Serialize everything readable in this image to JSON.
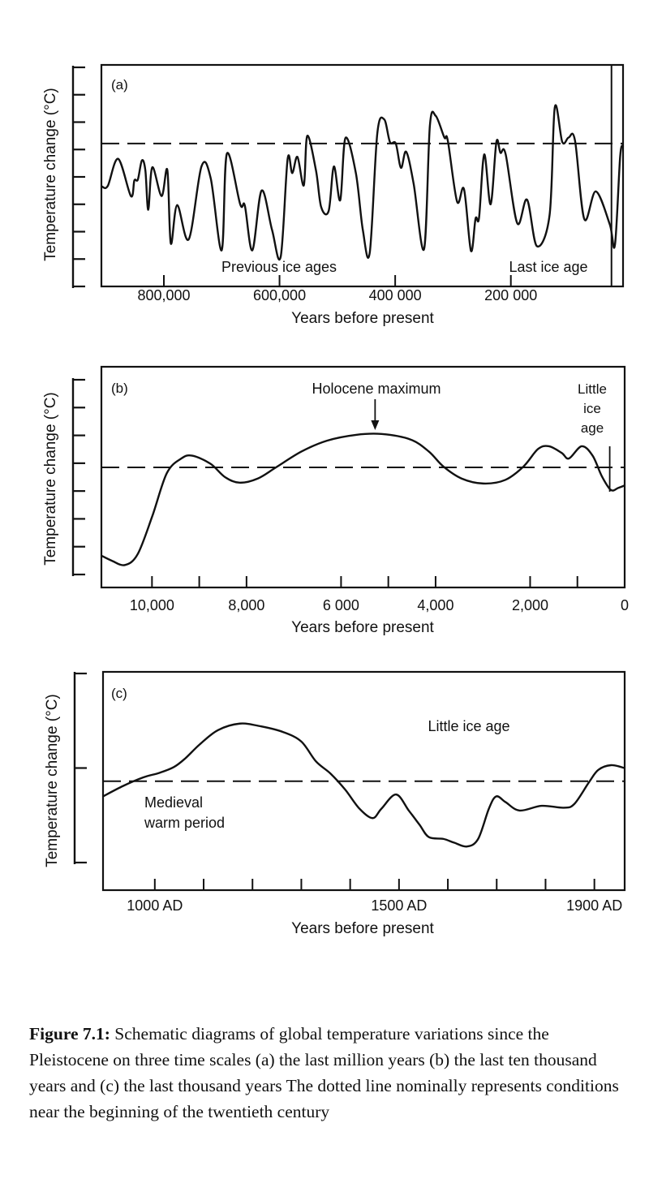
{
  "chart_data": [
    {
      "type": "line",
      "panel_label": "(a)",
      "ylabel": "Temperature change (°C)",
      "xlabel": "Years before present",
      "xlim": [
        908000,
        6000
      ],
      "ylim": [
        0,
        8
      ],
      "y_ticks_unlabeled": 9,
      "x_ticks": [
        800000,
        600000,
        400000,
        200000
      ],
      "x_tick_labels": [
        "800,000",
        "600,000",
        "400 000",
        "200 000"
      ],
      "reference_line": 5.22,
      "marker_line_year": 26000,
      "annotations": [
        "Previous ice ages",
        "Last ice age"
      ],
      "x": [
        907000,
        897000,
        879000,
        857000,
        851000,
        845000,
        838000,
        832000,
        827000,
        820000,
        804000,
        794000,
        788000,
        777000,
        757000,
        735000,
        719000,
        700000,
        691000,
        668000,
        660000,
        647000,
        631000,
        613000,
        598000,
        586000,
        578000,
        569000,
        558000,
        552000,
        537000,
        528000,
        515000,
        506000,
        495000,
        486000,
        468000,
        456000,
        444000,
        431000,
        419000,
        409000,
        399000,
        390000,
        381000,
        368000,
        350000,
        340000,
        330000,
        315000,
        309000,
        293000,
        281000,
        269000,
        261000,
        255000,
        246000,
        235000,
        225000,
        218000,
        209000,
        189000,
        172000,
        155000,
        133000,
        124000,
        111000,
        100000,
        89000,
        73000,
        53000,
        29000,
        20000,
        11000,
        6000
      ],
      "y": [
        3.65,
        3.67,
        4.66,
        3.3,
        3.87,
        3.9,
        4.6,
        4.24,
        2.8,
        4.35,
        3.3,
        4.25,
        1.57,
        2.97,
        1.72,
        4.38,
        3.95,
        1.32,
        4.85,
        3.0,
        2.95,
        1.32,
        3.5,
        2.07,
        1.08,
        4.65,
        4.14,
        4.73,
        3.69,
        5.5,
        4.24,
        2.9,
        2.76,
        4.38,
        3.15,
        5.42,
        4.14,
        2.07,
        1.23,
        5.57,
        6.1,
        5.27,
        5.22,
        4.33,
        4.92,
        3.74,
        1.37,
        5.87,
        6.23,
        5.44,
        5.32,
        3.1,
        3.55,
        1.3,
        2.48,
        2.51,
        4.82,
        3.0,
        5.27,
        4.88,
        4.83,
        2.31,
        3.17,
        1.47,
        2.61,
        6.54,
        5.27,
        5.44,
        5.32,
        2.46,
        3.47,
        2.27,
        1.52,
        4.74,
        5.13
      ]
    },
    {
      "type": "line",
      "panel_label": "(b)",
      "ylabel": "Temperature change (°C)",
      "xlabel": "Years before present",
      "xlim": [
        11070,
        0
      ],
      "ylim": [
        0,
        7
      ],
      "y_ticks_unlabeled": 8,
      "x_ticks": [
        10000,
        9000,
        8000,
        6000,
        5000,
        4000,
        2000,
        1000,
        0
      ],
      "x_tick_labels": [
        "10,000",
        "",
        "8,000",
        "6 000",
        "",
        "4,000",
        "2,000",
        "",
        "0"
      ],
      "reference_line": 3.85,
      "annotations": [
        "Holocene maximum",
        "Little",
        "ice",
        "age"
      ],
      "holocene_max_year": 5280,
      "little_ice_age_year": 316,
      "x": [
        11073,
        10842,
        10572,
        10303,
        9995,
        9687,
        9379,
        9148,
        8763,
        8455,
        8147,
        7762,
        7377,
        6838,
        6299,
        5683,
        5144,
        4528,
        4143,
        3835,
        3450,
        2988,
        2526,
        2141,
        1833,
        1602,
        1332,
        1178,
        909,
        678,
        485,
        293,
        139,
        0
      ],
      "y": [
        0.68,
        0.49,
        0.34,
        0.73,
        2.09,
        3.64,
        4.17,
        4.27,
        3.98,
        3.5,
        3.3,
        3.45,
        3.85,
        4.42,
        4.81,
        5.02,
        5.05,
        4.85,
        4.42,
        3.88,
        3.45,
        3.27,
        3.4,
        3.88,
        4.51,
        4.61,
        4.37,
        4.17,
        4.61,
        4.27,
        3.54,
        3.04,
        3.11,
        3.2
      ]
    },
    {
      "type": "line",
      "panel_label": "(c)",
      "ylabel": "Temperature change (°C)",
      "xlabel": "Years before present",
      "xlim": [
        894,
        1962
      ],
      "ylim": [
        0,
        2
      ],
      "y_ticks_unlabeled": 3,
      "x_ticks": [
        1000,
        1100,
        1200,
        1300,
        1400,
        1500,
        1600,
        1700,
        1800,
        1900
      ],
      "x_tick_labels": [
        "1000 AD",
        "",
        "",
        "",
        "",
        "1500 AD",
        "",
        "",
        "",
        "1900 AD"
      ],
      "reference_line": 0.86,
      "annotations": [
        "Little ice age",
        "Medieval",
        "warm period"
      ],
      "x": [
        894,
        935,
        976,
        1010,
        1039,
        1062,
        1092,
        1129,
        1174,
        1218,
        1263,
        1300,
        1330,
        1360,
        1390,
        1419,
        1446,
        1464,
        1494,
        1520,
        1542,
        1561,
        1591,
        1613,
        1639,
        1662,
        1684,
        1699,
        1718,
        1747,
        1792,
        1837,
        1859,
        1889,
        1908,
        1934,
        1962
      ],
      "y": [
        0.7,
        0.81,
        0.9,
        0.95,
        1.01,
        1.1,
        1.25,
        1.4,
        1.47,
        1.44,
        1.38,
        1.28,
        1.07,
        0.94,
        0.77,
        0.57,
        0.47,
        0.57,
        0.72,
        0.55,
        0.4,
        0.27,
        0.25,
        0.21,
        0.17,
        0.25,
        0.57,
        0.7,
        0.64,
        0.55,
        0.6,
        0.58,
        0.62,
        0.85,
        0.98,
        1.03,
        1.0
      ]
    }
  ],
  "caption": {
    "label": "Figure 7.1:",
    "text": "Schematic diagrams of global temperature variations since the Pleistocene on three time scales (a) the last million years (b) the last ten thousand years and (c) the last thousand years The dotted line nominally represents conditions near the beginning of the twentieth century"
  }
}
